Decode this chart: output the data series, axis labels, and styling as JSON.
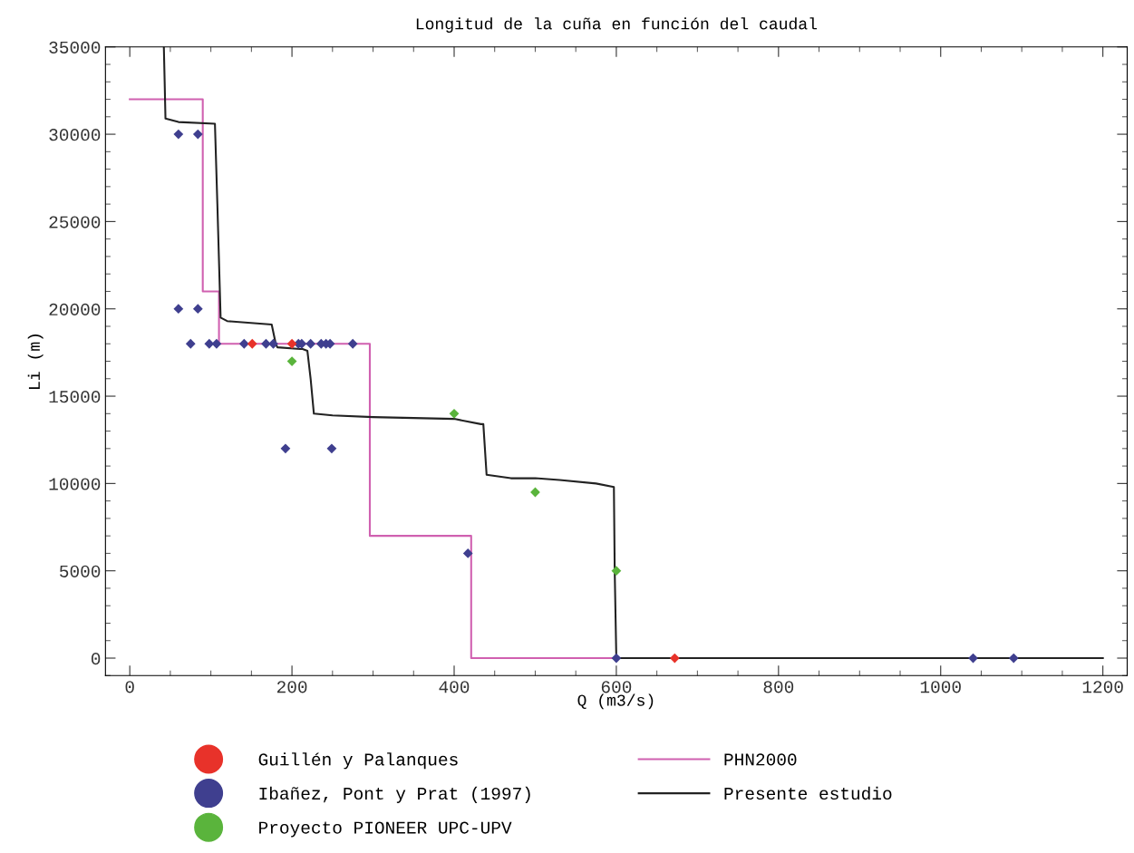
{
  "chart_data": {
    "type": "line",
    "title": "Longitud de la cuña en función del caudal",
    "xlabel": "Q (m3/s)",
    "ylabel": "Li (m)",
    "xlim": [
      -30,
      1230
    ],
    "xticks": [
      0,
      200,
      400,
      600,
      800,
      1000,
      1200
    ],
    "ylim": [
      -1000,
      35000
    ],
    "yticks": [
      0,
      5000,
      10000,
      15000,
      20000,
      25000,
      30000,
      35000
    ],
    "grid": false,
    "legend": "bottom",
    "series": [
      {
        "name": "Guillén y Palanques",
        "type": "scatter",
        "marker": "diamond",
        "color": "#e8322a",
        "x": [
          151,
          200,
          672
        ],
        "values": [
          18000,
          18000,
          0
        ]
      },
      {
        "name": "Ibañez, Pont y Prat (1997)",
        "type": "scatter",
        "marker": "diamond",
        "color": "#3f3f8f",
        "x": [
          60,
          84,
          60,
          84,
          75,
          98,
          107,
          141,
          168,
          177,
          208,
          212,
          223,
          236,
          242,
          247,
          275,
          192,
          249,
          417,
          600,
          1040,
          1090
        ],
        "values": [
          30000,
          30000,
          20000,
          20000,
          18000,
          18000,
          18000,
          18000,
          18000,
          18000,
          18000,
          18000,
          18000,
          18000,
          18000,
          18000,
          18000,
          12000,
          12000,
          6000,
          0,
          0,
          0
        ]
      },
      {
        "name": "Proyecto PIONEER UPC-UPV",
        "type": "scatter",
        "marker": "diamond",
        "color": "#5ab43c",
        "x": [
          200,
          400,
          500,
          600
        ],
        "values": [
          17000,
          14000,
          9500,
          5000
        ]
      },
      {
        "name": "PHN2000",
        "type": "step",
        "color": "#d060b0",
        "line_style": "solid",
        "x": [
          0,
          90,
          110,
          296,
          421,
          600
        ],
        "values": [
          32000,
          21000,
          18000,
          7000,
          0,
          0
        ]
      },
      {
        "name": "Presente estudio",
        "color": "#222222",
        "line_style": "solid",
        "x": [
          42,
          43,
          44,
          60,
          105,
          108,
          112,
          120,
          175,
          180,
          182,
          210,
          213,
          219,
          223,
          227,
          250,
          300,
          400,
          433,
          436,
          440,
          470,
          500,
          530,
          575,
          597,
          598,
          600,
          1200
        ],
        "values": [
          35000,
          33000,
          30900,
          30700,
          30600,
          26000,
          19500,
          19300,
          19100,
          18000,
          17800,
          17700,
          17700,
          17600,
          16000,
          14000,
          13900,
          13800,
          13700,
          13400,
          13400,
          10500,
          10300,
          10300,
          10200,
          10000,
          9800,
          5000,
          0,
          0
        ]
      }
    ]
  }
}
